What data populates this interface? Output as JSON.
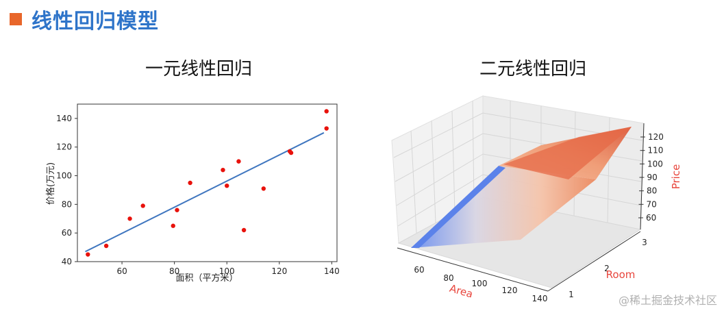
{
  "header": {
    "title": "线性回归模型",
    "accent": "#e8662a",
    "title_color": "#2e74c9"
  },
  "chart_data": [
    {
      "type": "scatter",
      "title": "一元线性回归",
      "xlabel": "面积（平方米）",
      "ylabel": "价格(万元)",
      "xlim": [
        43,
        142
      ],
      "ylim": [
        40,
        150
      ],
      "xticks": [
        "60",
        "80",
        "100",
        "120",
        "140"
      ],
      "yticks": [
        "40",
        "60",
        "80",
        "100",
        "120",
        "140"
      ],
      "points": {
        "x": [
          47,
          54,
          63,
          68,
          79.5,
          81,
          86,
          98.5,
          100,
          104.5,
          106.5,
          114,
          124,
          124.5,
          138,
          138
        ],
        "y": [
          45,
          51,
          70,
          79,
          65,
          76,
          95,
          104,
          93,
          110,
          62,
          91,
          117,
          116,
          145,
          133
        ],
        "color": "#e8120c"
      },
      "fit_line": {
        "x": [
          46,
          137
        ],
        "y": [
          47,
          130
        ],
        "color": "#3f76bf"
      }
    },
    {
      "type": "surface3d",
      "title": "二元线性回归",
      "x_axis": {
        "label": "Area",
        "ticks": [
          "60",
          "80",
          "100",
          "120",
          "140"
        ]
      },
      "y_axis": {
        "label": "Room",
        "ticks": [
          "1",
          "2",
          "3"
        ]
      },
      "z_axis": {
        "label": "Price",
        "ticks": [
          "60",
          "70",
          "80",
          "90",
          "100",
          "110",
          "120"
        ]
      },
      "colormap": "coolwarm",
      "label_color": "#e8453c"
    }
  ],
  "watermark": "@稀土掘金技术社区"
}
